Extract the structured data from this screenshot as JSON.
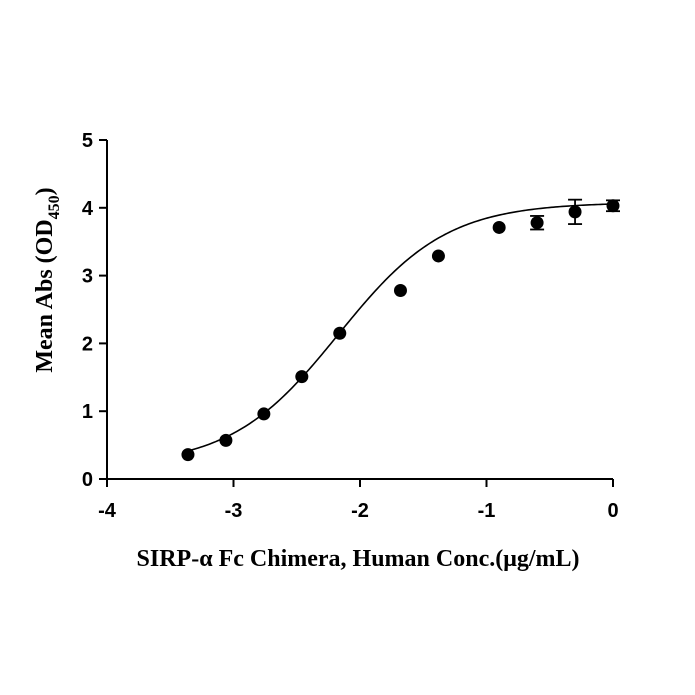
{
  "chart_data": {
    "type": "scatter",
    "title": "",
    "xlabel": "SIRP-α Fc Chimera, Human Conc.(μg/mL)",
    "ylabel": {
      "main": "Mean Abs (OD",
      "sub": "450",
      "close": ")"
    },
    "xlim": [
      -4,
      0
    ],
    "ylim": [
      0,
      5
    ],
    "xticks": [
      -4,
      -3,
      -2,
      -1,
      0
    ],
    "yticks": [
      0,
      1,
      2,
      3,
      4,
      5
    ],
    "xtick_labels": [
      "-4",
      "-3",
      "-2",
      "-1",
      "0"
    ],
    "ytick_labels": [
      "0",
      "1",
      "2",
      "3",
      "4",
      "5"
    ],
    "grid": false,
    "legend": "none",
    "marker_color": "#000000",
    "curve": "sigmoid fit",
    "series": [
      {
        "x": [
          -3.36,
          -3.06,
          -2.76,
          -2.46,
          -2.16,
          -1.68,
          -1.38,
          -0.9,
          -0.6,
          -0.3,
          0.0
        ],
        "y": [
          0.36,
          0.57,
          0.96,
          1.51,
          2.15,
          2.78,
          3.29,
          3.71,
          3.78,
          3.94,
          4.03
        ],
        "error": [
          0.0,
          0.0,
          0.0,
          0.0,
          0.0,
          0.0,
          0.0,
          0.0,
          0.1,
          0.18,
          0.08
        ]
      }
    ]
  }
}
